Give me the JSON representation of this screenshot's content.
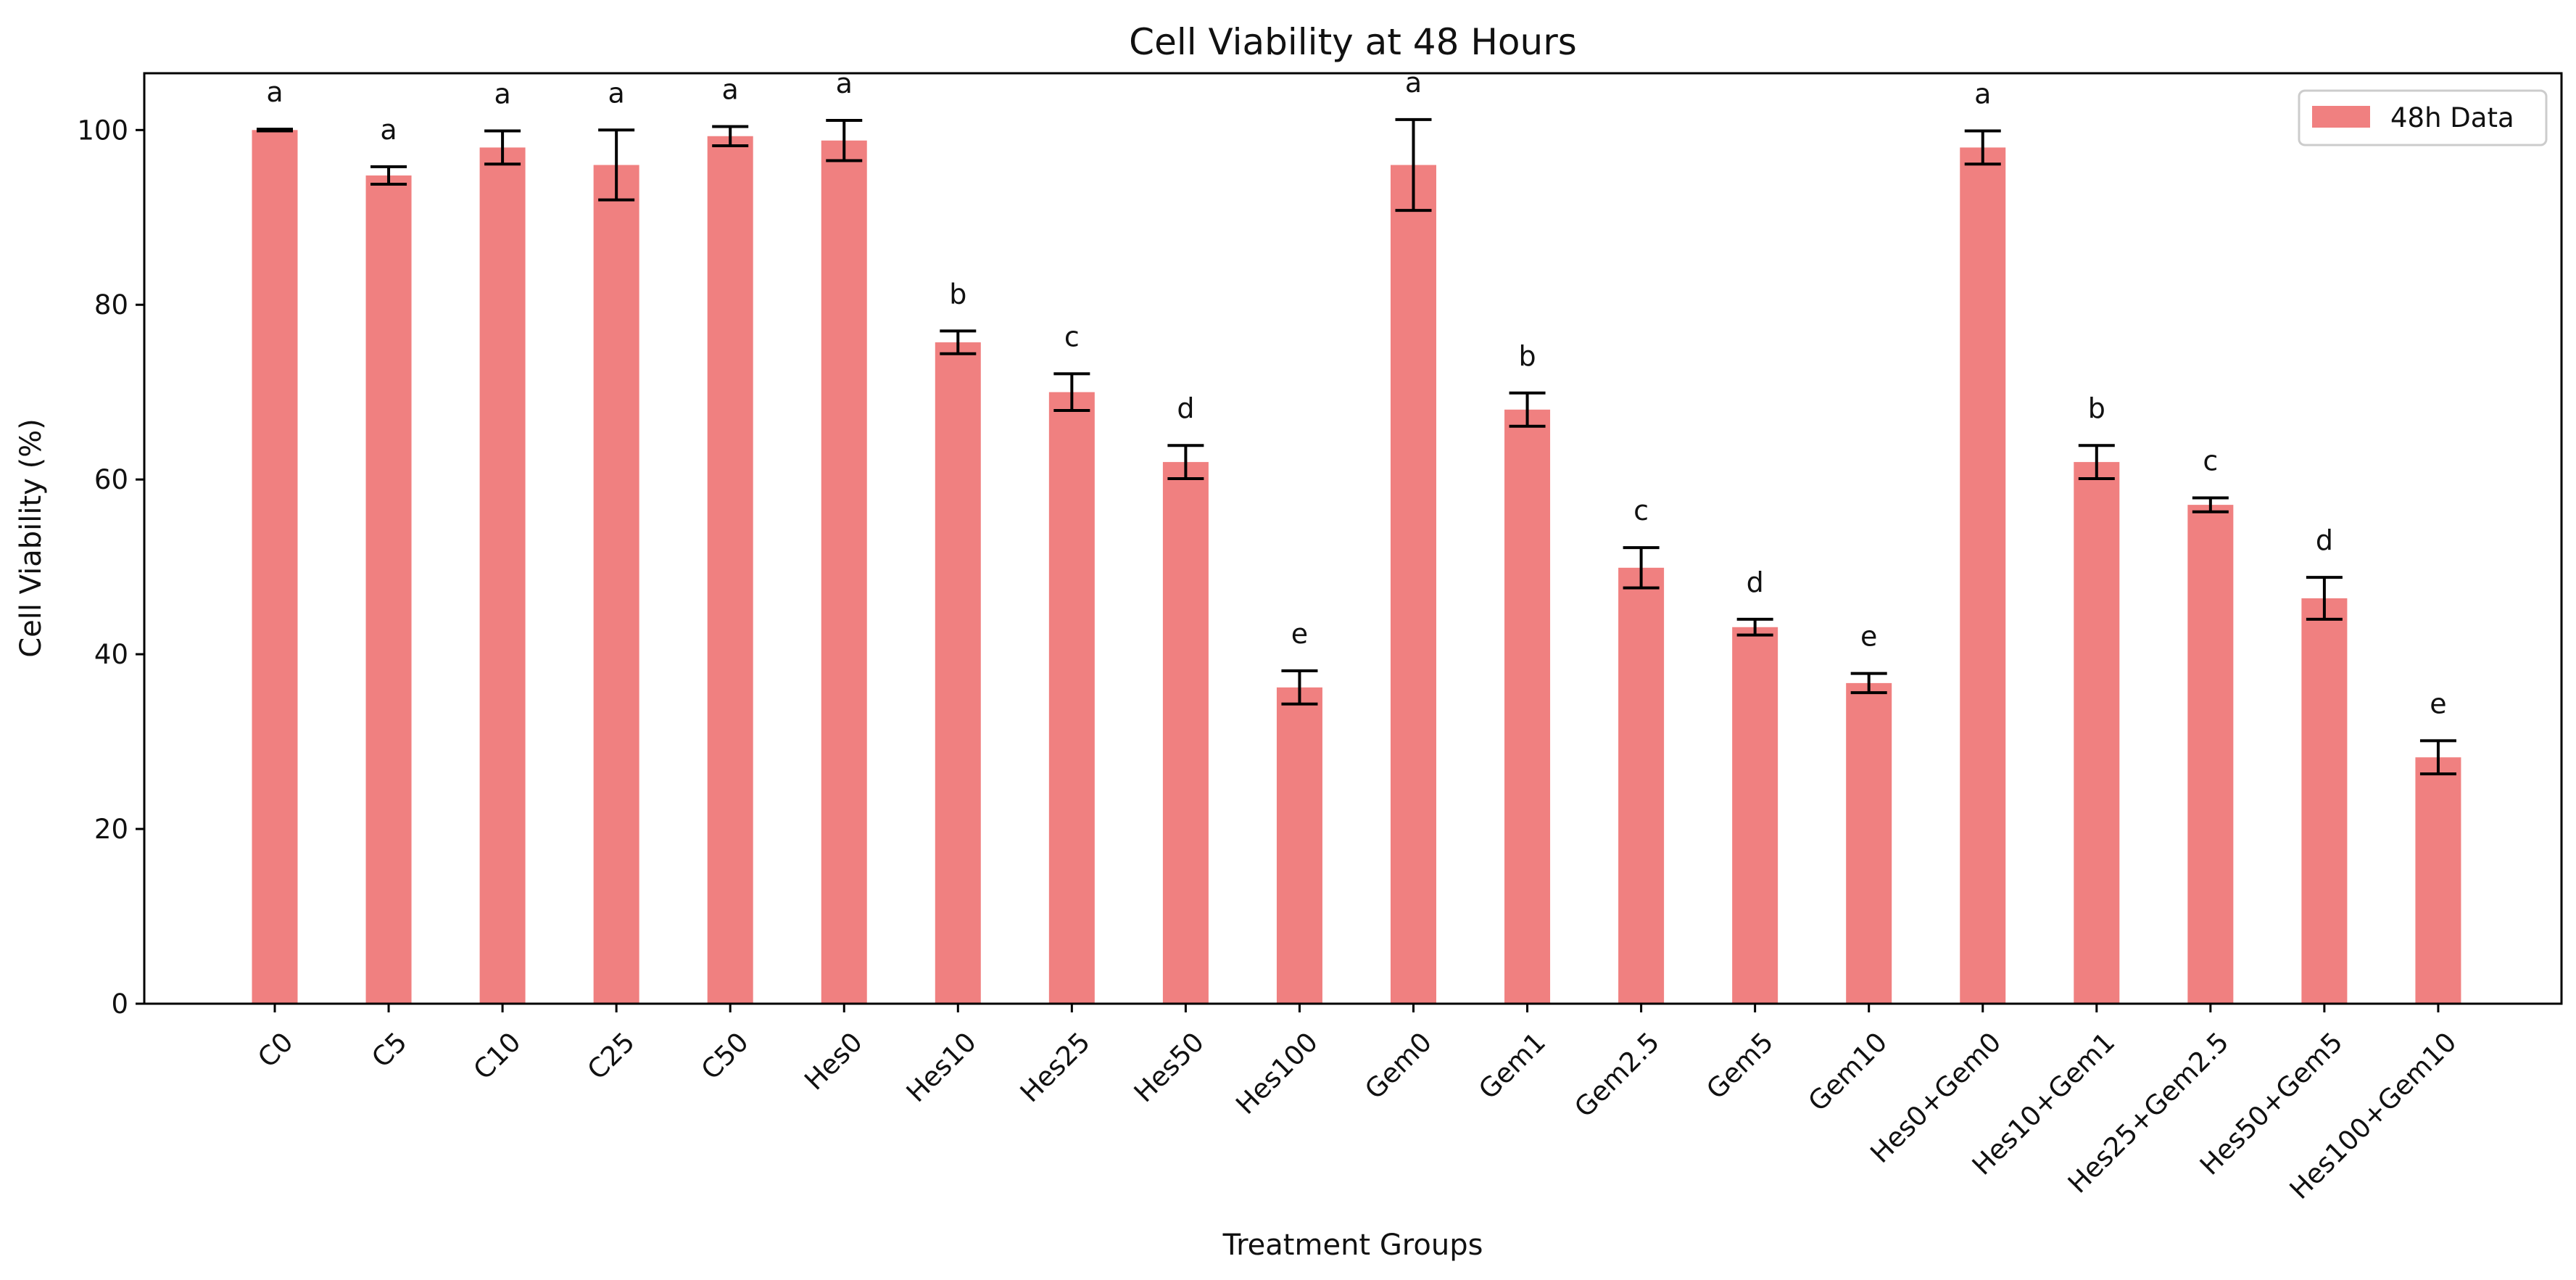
{
  "chart_data": {
    "type": "bar",
    "title": "Cell Viability at 48 Hours",
    "xlabel": "Treatment Groups",
    "ylabel": "Cell Viability (%)",
    "ylim": [
      0,
      106.5
    ],
    "yticks": [
      0,
      20,
      40,
      60,
      80,
      100
    ],
    "legend_position": "top-right",
    "grid": false,
    "categories": [
      "C0",
      "C5",
      "C10",
      "C25",
      "C50",
      "Hes0",
      "Hes10",
      "Hes25",
      "Hes50",
      "Hes100",
      "Gem0",
      "Gem1",
      "Gem2.5",
      "Gem5",
      "Gem10",
      "Hes0+Gem0",
      "Hes10+Gem1",
      "Hes25+Gem2.5",
      "Hes50+Gem5",
      "Hes100+Gem10"
    ],
    "series": [
      {
        "name": "48h Data",
        "color": "#F08080",
        "values": [
          100,
          94.8,
          98,
          96,
          99.3,
          98.8,
          75.7,
          70,
          62,
          36.2,
          96,
          68,
          49.9,
          43.1,
          36.7,
          98,
          62,
          57.1,
          46.4,
          28.2
        ],
        "errors": [
          0.1,
          1,
          1.9,
          4,
          1.1,
          2.3,
          1.3,
          2.1,
          1.9,
          1.9,
          5.2,
          1.9,
          2.3,
          0.9,
          1.1,
          1.9,
          1.9,
          0.8,
          2.4,
          1.9
        ],
        "significance_letters": [
          "a",
          "a",
          "a",
          "a",
          "a",
          "a",
          "b",
          "c",
          "d",
          "e",
          "a",
          "b",
          "c",
          "d",
          "e",
          "a",
          "b",
          "c",
          "d",
          "e"
        ]
      }
    ],
    "error_bar_color": "#000000"
  }
}
